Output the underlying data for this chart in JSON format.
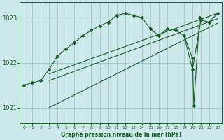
{
  "title": "Graphe pression niveau de la mer (hPa)",
  "bg_color": "#cce8ea",
  "grid_color": "#a0c8cc",
  "line_color": "#1a5c28",
  "xlim": [
    -0.5,
    23.5
  ],
  "ylim": [
    1020.65,
    1023.35
  ],
  "yticks": [
    1021,
    1022,
    1023
  ],
  "xticks": [
    0,
    1,
    2,
    3,
    4,
    5,
    6,
    7,
    8,
    9,
    10,
    11,
    12,
    13,
    14,
    15,
    16,
    17,
    18,
    19,
    20,
    21,
    22,
    23
  ],
  "main_x": [
    0,
    1,
    2,
    3,
    4,
    5,
    6,
    7,
    8,
    9,
    10,
    11,
    12,
    13,
    14,
    15,
    16,
    17,
    18,
    19,
    20,
    21,
    22,
    23
  ],
  "main_y": [
    1021.5,
    1021.55,
    1021.6,
    1021.85,
    1022.15,
    1022.3,
    1022.45,
    1022.6,
    1022.72,
    1022.82,
    1022.9,
    1023.05,
    1023.1,
    1023.05,
    1023.0,
    1022.75,
    1022.6,
    1022.75,
    1022.72,
    1022.6,
    1021.85,
    1022.95,
    1022.9,
    1023.1
  ],
  "trend1_x": [
    3,
    23
  ],
  "trend1_y": [
    1021.75,
    1023.1
  ],
  "trend2_x": [
    3,
    23
  ],
  "trend2_y": [
    1021.6,
    1022.98
  ],
  "trend3_x": [
    3,
    23
  ],
  "trend3_y": [
    1021.0,
    1022.88
  ],
  "spike_x": [
    19,
    20,
    20.15,
    20.85,
    21
  ],
  "spike_y": [
    1022.6,
    1022.1,
    1021.05,
    1023.0,
    1022.95
  ]
}
